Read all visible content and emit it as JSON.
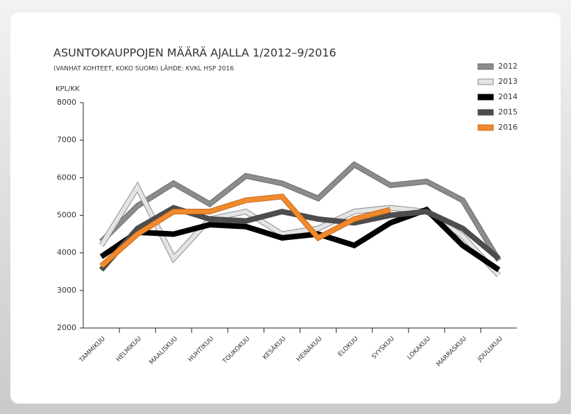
{
  "chart_data": {
    "type": "line",
    "title": "ASUNTOKAUPPOJEN MÄÄRÄ AJALLA 1/2012–9/2016",
    "subtitle": "(VANHAT KOHTEET, KOKO SUOMI) LÄHDE: KVKL HSP 2016",
    "y_label": "KPL/KK",
    "categories": [
      "TAMMIKUU",
      "HELMIKUU",
      "MAALISKUU",
      "HUHTIKUU",
      "TOUKOKUU",
      "KESÄKUU",
      "HEINÄKUU",
      "ELOKUU",
      "SYYSKUU",
      "LOKAKUU",
      "MARRASKUU",
      "JOULUKUU"
    ],
    "series": [
      {
        "name": "2012",
        "color": "#8c8c8e",
        "values": [
          4300,
          5250,
          5850,
          5300,
          6050,
          5850,
          5450,
          6350,
          5800,
          5900,
          5400,
          3800
        ]
      },
      {
        "name": "2013",
        "color": "#e4e4e4",
        "values": [
          4200,
          5750,
          3850,
          4900,
          5100,
          4500,
          4650,
          5100,
          5200,
          5100,
          4450,
          3400
        ]
      },
      {
        "name": "2014",
        "color": "#000000",
        "values": [
          3900,
          4550,
          4500,
          4750,
          4700,
          4400,
          4500,
          4200,
          4800,
          5150,
          4200,
          3550
        ]
      },
      {
        "name": "2015",
        "color": "#4d4d4d",
        "values": [
          3550,
          4650,
          5200,
          4900,
          4850,
          5100,
          4900,
          4800,
          5000,
          5100,
          4650,
          3850
        ]
      },
      {
        "name": "2016",
        "color": "#f08a2d",
        "values": [
          3650,
          4500,
          5100,
          5100,
          5400,
          5500,
          4400,
          4900,
          5150,
          null,
          null,
          null
        ]
      }
    ],
    "ylim": [
      2000,
      8000
    ],
    "yticks": [
      2000,
      3000,
      4000,
      5000,
      6000,
      7000,
      8000
    ],
    "legend": "top-right"
  }
}
